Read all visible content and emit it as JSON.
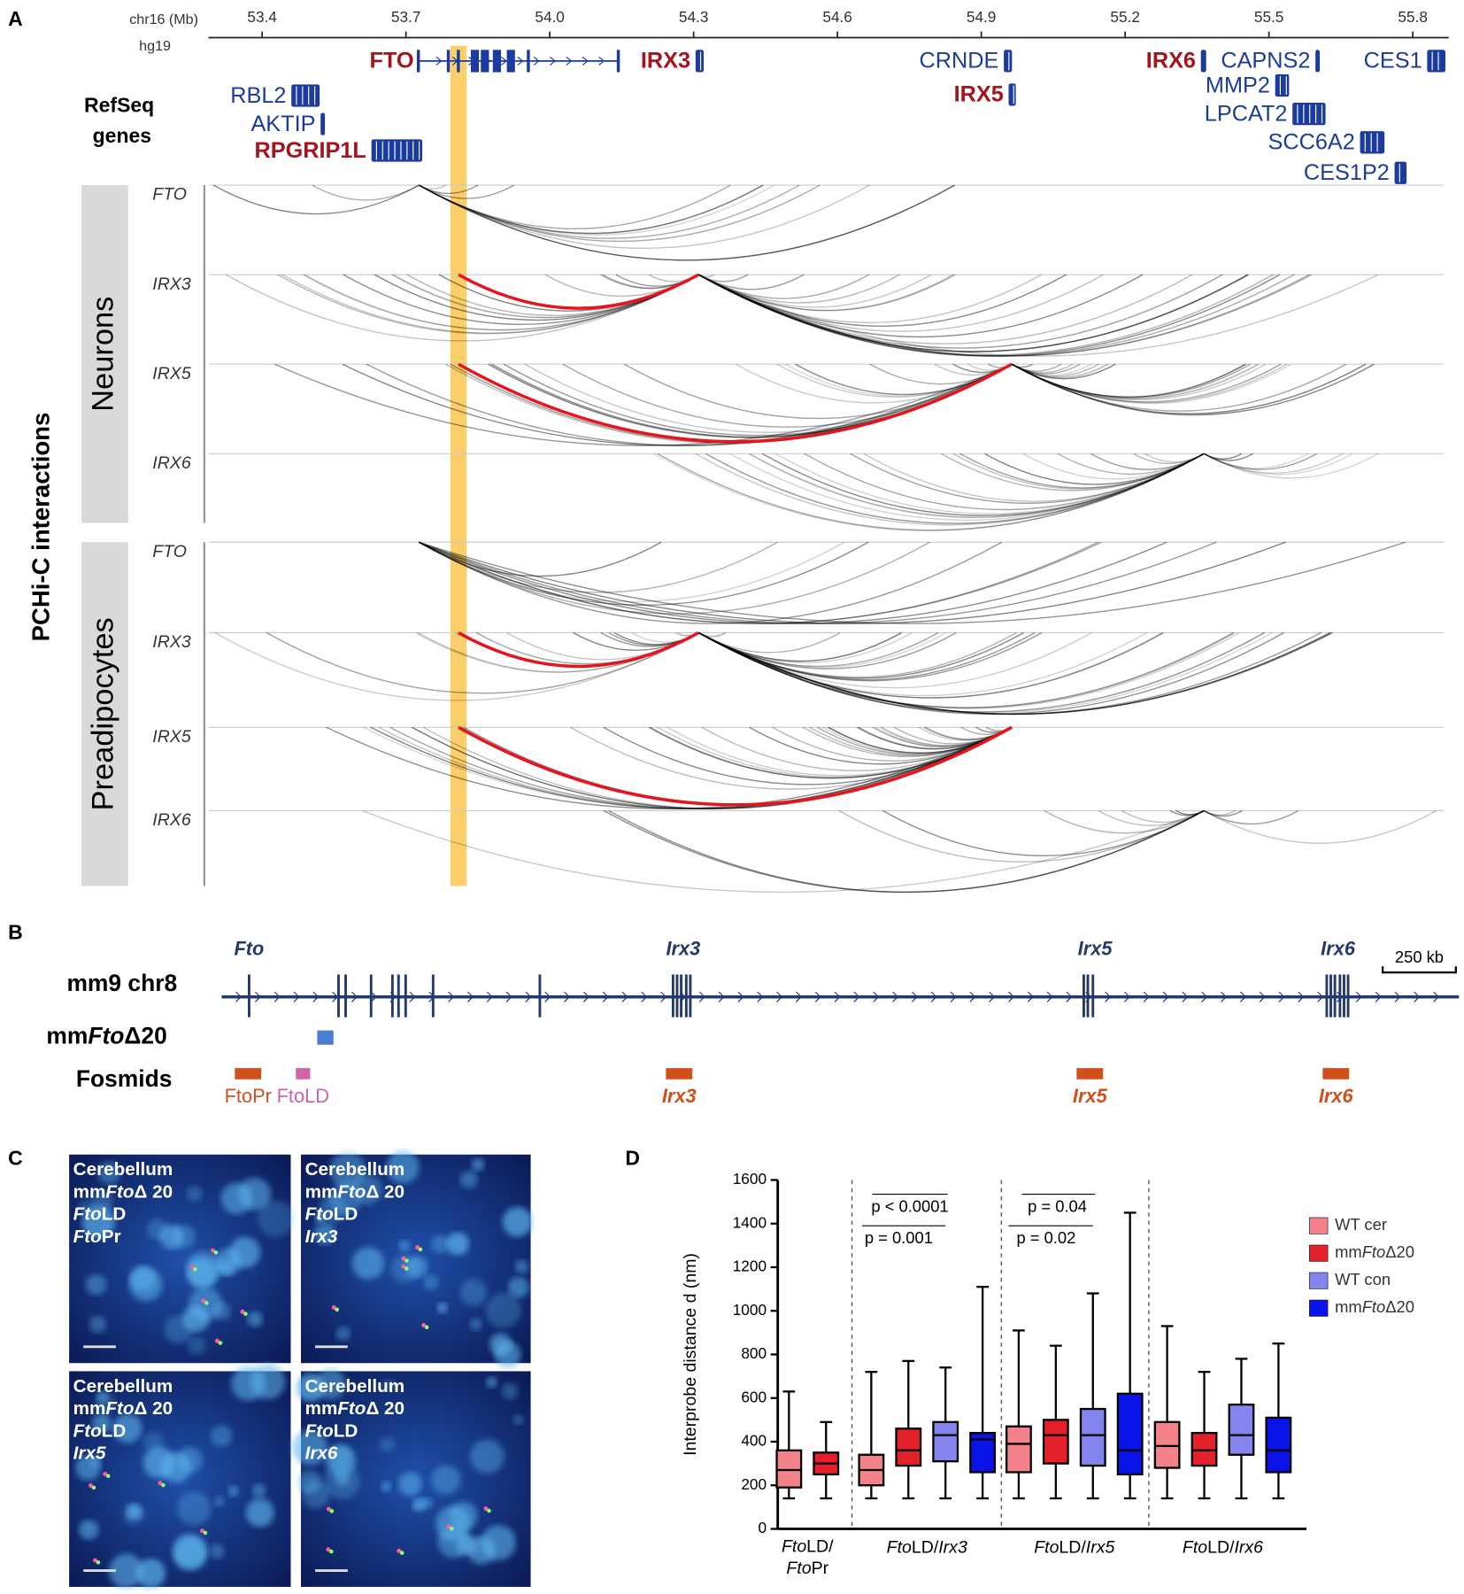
{
  "panel_a": {
    "label": "A",
    "axis_label": "chr16 (Mb)",
    "assembly": "hg19",
    "xlim": [
      53.288,
      55.875
    ],
    "xticks": [
      53.4,
      53.7,
      {
        "value": 54.0,
        "label": "54.0"
      },
      54.3,
      54.6,
      54.9,
      55.2,
      55.5,
      55.8
    ],
    "track_label": "RefSeq genes",
    "genes": [
      {
        "name": "FTO",
        "start": 53.727,
        "end": 54.144,
        "color": "#a3141c"
      },
      {
        "name": "IRX3",
        "start": 54.304,
        "end": 54.321,
        "color": "#a3141c"
      },
      {
        "name": "CRNDE",
        "start": 54.947,
        "end": 54.964,
        "color": "#1b3c9e"
      },
      {
        "name": "IRX5",
        "start": 54.957,
        "end": 54.972,
        "color": "#a3141c"
      },
      {
        "name": "IRX6",
        "start": 55.358,
        "end": 55.369,
        "color": "#a3141c"
      },
      {
        "name": "CAPNS2",
        "start": 55.597,
        "end": 55.606,
        "color": "#1b3c9e"
      },
      {
        "name": "CES1",
        "start": 55.83,
        "end": 55.868,
        "color": "#1b3c9e"
      },
      {
        "name": "MMP2",
        "start": 55.513,
        "end": 55.542,
        "color": "#1b3c9e"
      },
      {
        "name": "LPCAT2",
        "start": 55.549,
        "end": 55.618,
        "color": "#1b3c9e"
      },
      {
        "name": "SCC6A2",
        "start": 55.69,
        "end": 55.741,
        "color": "#1b3c9e"
      },
      {
        "name": "CES1P2",
        "start": 55.762,
        "end": 55.787,
        "color": "#1b3c9e"
      },
      {
        "name": "RBL2",
        "start": 53.461,
        "end": 53.52,
        "color": "#1b3c9e"
      },
      {
        "name": "AKTIP",
        "start": 53.522,
        "end": 53.531,
        "color": "#1b3c9e"
      },
      {
        "name": "RPGRIP1L",
        "start": 53.628,
        "end": 53.734,
        "color": "#a3141c"
      }
    ],
    "side_label": "PCHi-C interactions",
    "groups": [
      {
        "name": "Neurons",
        "tracks": [
          "FTO",
          "IRX3",
          "IRX5",
          "IRX6"
        ]
      },
      {
        "name": "Preadipocytes",
        "tracks": [
          "FTO",
          "IRX3",
          "IRX5",
          "IRX6"
        ]
      }
    ]
  },
  "panel_b": {
    "label": "B",
    "genes": [
      "Fto",
      "Irx3",
      "Irx5",
      "Irx6"
    ],
    "scale": "250 kb",
    "rows": [
      "mm9 chr8",
      "mmFtoΔ20",
      "Fosmids"
    ],
    "fosmids": [
      "FtoPr",
      "FtoLD",
      "Irx3",
      "Irx5",
      "Irx6"
    ]
  },
  "panel_c": {
    "label": "C",
    "images": [
      [
        "Cerebellum",
        "mmFtoΔ 20",
        "FtoLD",
        "FtoPr"
      ],
      [
        "Cerebellum",
        "mmFtoΔ 20",
        "FtoLD",
        "Irx3"
      ],
      [
        "Cerebellum",
        "mmFtoΔ 20",
        "FtoLD",
        "Irx5"
      ],
      [
        "Cerebellum",
        "mmFtoΔ 20",
        "FtoLD",
        "Irx6"
      ]
    ]
  },
  "chart_data": {
    "type": "box",
    "label": "D",
    "y_label": "Interprobe distance d (nm)",
    "categories": [
      "FtoLD/FtoPr",
      "FtoLD/Irx3",
      "FtoLD/Irx5",
      "FtoLD/Irx6"
    ],
    "ylim": [
      0,
      1600
    ],
    "yticks": [
      0,
      200,
      400,
      600,
      800,
      1000,
      1200,
      1400,
      1600
    ],
    "annotations": [
      "p < 0.0001",
      "p = 0.001",
      "p = 0.04",
      "p = 0.02"
    ],
    "series": [
      {
        "name": "WT cer",
        "color": "#f3828a",
        "min": [
          140,
          140,
          140,
          140
        ],
        "q1": [
          190,
          200,
          260,
          280
        ],
        "median": [
          270,
          270,
          390,
          380
        ],
        "q3": [
          360,
          340,
          470,
          490
        ],
        "max": [
          630,
          720,
          910,
          930
        ]
      },
      {
        "name": "mmFtoΔ20",
        "color": "#e4202a",
        "min": [
          140,
          140,
          140,
          140
        ],
        "q1": [
          250,
          290,
          300,
          290
        ],
        "median": [
          300,
          360,
          430,
          360
        ],
        "q3": [
          350,
          460,
          500,
          440
        ],
        "max": [
          490,
          770,
          840,
          720
        ]
      },
      {
        "name": "WT con",
        "color": "#8484ee",
        "min": [
          null,
          140,
          140,
          140
        ],
        "q1": [
          null,
          310,
          290,
          340
        ],
        "median": [
          null,
          430,
          430,
          430
        ],
        "q3": [
          null,
          490,
          550,
          570
        ],
        "max": [
          null,
          740,
          1080,
          780
        ]
      },
      {
        "name": "mmFtoΔ20",
        "color": "#0a14e8",
        "min": [
          null,
          140,
          140,
          140
        ],
        "q1": [
          null,
          260,
          250,
          260
        ],
        "median": [
          null,
          410,
          360,
          360
        ],
        "q3": [
          null,
          440,
          620,
          510
        ],
        "max": [
          null,
          1110,
          1450,
          850
        ]
      }
    ]
  }
}
